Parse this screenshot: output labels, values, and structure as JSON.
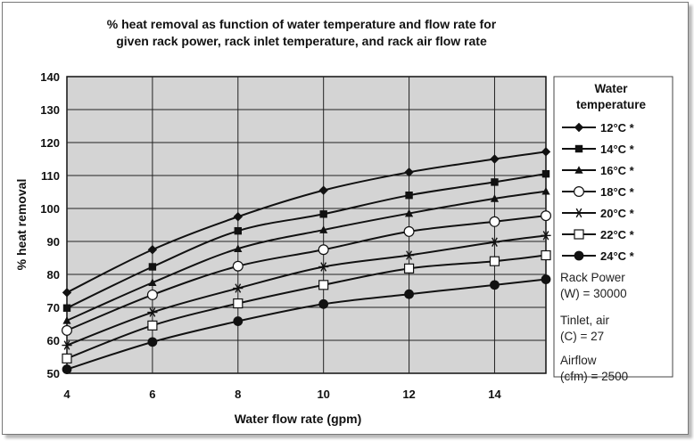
{
  "chart_data": {
    "type": "line",
    "title": "% heat removal as function of water temperature and flow rate for given rack power, rack inlet temperature, and rack air flow rate",
    "title_lines": [
      "% heat removal as function of water temperature and flow rate for",
      "given rack power, rack inlet temperature, and rack air flow rate"
    ],
    "xlabel": "Water flow rate (gpm)",
    "ylabel": "% heat removal",
    "xlim": [
      4,
      15.2
    ],
    "ylim": [
      50,
      140
    ],
    "xticks": [
      4,
      6,
      8,
      10,
      12,
      14
    ],
    "yticks": [
      50,
      60,
      70,
      80,
      90,
      100,
      110,
      120,
      130,
      140
    ],
    "grid": true,
    "legend_title_lines": [
      "Water",
      "temperature"
    ],
    "legend_position": "right",
    "x": [
      4,
      6,
      8,
      10,
      12,
      14,
      15.2
    ],
    "series": [
      {
        "name": "12°C *",
        "marker": "diamond",
        "values": [
          74.5,
          87.5,
          97.5,
          105.5,
          111,
          115,
          117.2
        ]
      },
      {
        "name": "14°C *",
        "marker": "square-filled",
        "values": [
          69.8,
          82.3,
          93.2,
          98.3,
          104,
          108,
          110.5
        ]
      },
      {
        "name": "16°C *",
        "marker": "triangle",
        "values": [
          66,
          77.5,
          87.8,
          93.5,
          98.5,
          103,
          105.2
        ]
      },
      {
        "name": "18°C *",
        "marker": "circle-open",
        "values": [
          63,
          73.8,
          82.5,
          87.5,
          93,
          96,
          97.8
        ]
      },
      {
        "name": "20°C *",
        "marker": "asterisk",
        "values": [
          58.5,
          68.5,
          75.8,
          82.3,
          85.8,
          89.8,
          91.8
        ]
      },
      {
        "name": "22°C *",
        "marker": "square-open",
        "values": [
          54.5,
          64.5,
          71.2,
          76.8,
          81.8,
          84,
          85.8
        ]
      },
      {
        "name": "24°C *",
        "marker": "circle-filled",
        "values": [
          51.2,
          59.5,
          65.8,
          71,
          74,
          76.8,
          78.5
        ]
      }
    ],
    "notes": [
      {
        "line1": "Rack Power",
        "line2": "(W) = 30000"
      },
      {
        "line1": "Tinlet, air",
        "line2": "(C) = 27"
      },
      {
        "line1": "Airflow",
        "line2": "(cfm) = 2500"
      }
    ],
    "colors": {
      "plot_bg": "#d4d4d4",
      "line": "#111111",
      "grid": "#222222"
    }
  }
}
